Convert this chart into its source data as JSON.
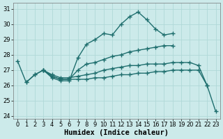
{
  "bg_color": "#cceaea",
  "grid_color": "#b0d8d8",
  "line_color": "#1f6e6e",
  "line_width": 1.0,
  "marker": "+",
  "marker_size": 4,
  "marker_lw": 1.0,
  "xlabel": "Humidex (Indice chaleur)",
  "xlabel_fontsize": 7.5,
  "tick_fontsize": 6,
  "ylim": [
    23.8,
    31.4
  ],
  "yticks": [
    24,
    25,
    26,
    27,
    28,
    29,
    30,
    31
  ],
  "xlim": [
    -0.5,
    23.5
  ],
  "xticks": [
    0,
    1,
    2,
    3,
    4,
    5,
    6,
    7,
    8,
    9,
    10,
    11,
    12,
    13,
    14,
    15,
    16,
    17,
    18,
    19,
    20,
    21,
    22,
    23
  ],
  "lines": [
    {
      "x": [
        0,
        1,
        2,
        3,
        4,
        5,
        6,
        7,
        8,
        9,
        10,
        11,
        12,
        13,
        14,
        15,
        16,
        17,
        18
      ],
      "y": [
        27.6,
        26.2,
        26.7,
        27.0,
        26.5,
        26.3,
        26.3,
        27.8,
        28.7,
        29.0,
        29.4,
        29.3,
        30.0,
        30.5,
        30.8,
        30.3,
        29.7,
        29.3,
        29.4
      ]
    },
    {
      "x": [
        3,
        4,
        5,
        6,
        7,
        8,
        9,
        10,
        11,
        12,
        13,
        14,
        15,
        16,
        17,
        18
      ],
      "y": [
        27.0,
        26.6,
        26.4,
        26.4,
        27.0,
        27.4,
        27.5,
        27.7,
        27.9,
        28.0,
        28.2,
        28.3,
        28.4,
        28.5,
        28.6,
        28.6
      ]
    },
    {
      "x": [
        3,
        4,
        5,
        6,
        7,
        8,
        9,
        10,
        11,
        12,
        13,
        14,
        15,
        16,
        17,
        18,
        19,
        20,
        21,
        22
      ],
      "y": [
        27.0,
        26.7,
        26.5,
        26.5,
        26.6,
        26.7,
        26.8,
        27.0,
        27.1,
        27.2,
        27.3,
        27.3,
        27.4,
        27.4,
        27.4,
        27.5,
        27.5,
        27.5,
        27.3,
        26.0
      ]
    },
    {
      "x": [
        1,
        2,
        3,
        4,
        5,
        6,
        7,
        8,
        9,
        10,
        11,
        12,
        13,
        14,
        15,
        16,
        17,
        18,
        19,
        20,
        21,
        22,
        23
      ],
      "y": [
        26.2,
        26.7,
        27.0,
        26.6,
        26.4,
        26.4,
        26.4,
        26.4,
        26.5,
        26.5,
        26.6,
        26.7,
        26.7,
        26.8,
        26.8,
        26.9,
        26.9,
        27.0,
        27.0,
        27.0,
        27.0,
        26.0,
        24.3
      ]
    }
  ]
}
